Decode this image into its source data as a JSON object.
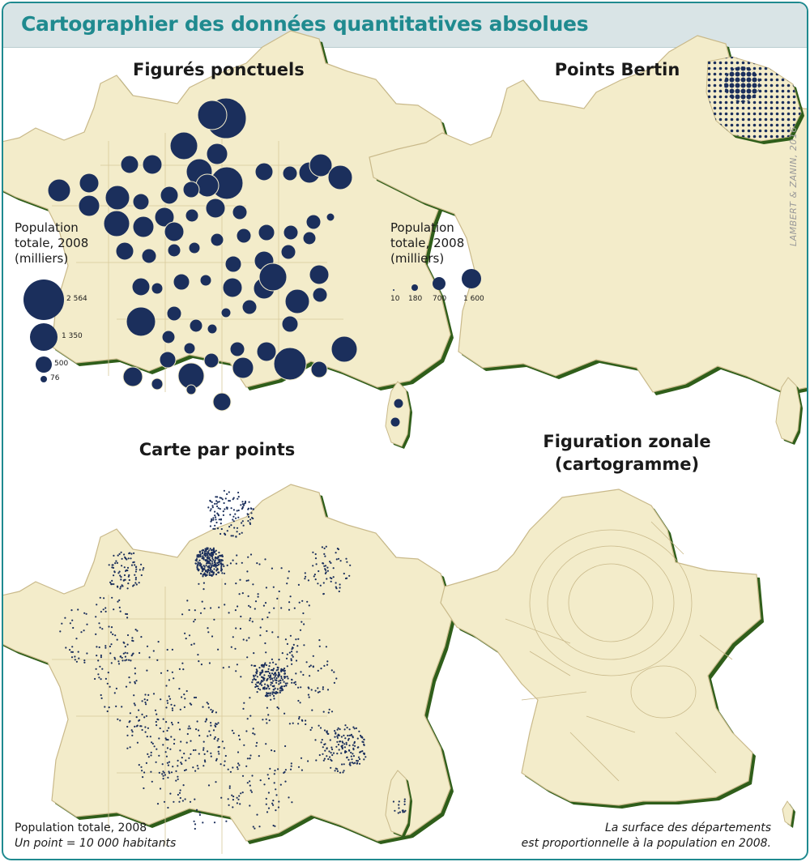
{
  "header": {
    "title": "Cartographier des données quantitatives absolues"
  },
  "credit": "LAMBERT & ZANIN, 2016",
  "panels": {
    "proportional_symbols": {
      "title": "Figurés ponctuels",
      "legend": {
        "title": "Population totale, 2008 (milliers)",
        "values": [
          "2 564",
          "1 350",
          "500",
          "76"
        ]
      }
    },
    "bertin": {
      "title": "Points Bertin",
      "legend": {
        "title": "Population totale, 2008 (milliers)",
        "values": [
          "10",
          "180",
          "700",
          "1 600"
        ]
      }
    },
    "dot_map": {
      "title": "Carte par points",
      "note_line1": "Population totale, 2008",
      "note_line2": "Un point = 10 000 habitants"
    },
    "cartogram": {
      "title_line1": "Figuration zonale",
      "title_line2": "(cartogramme)",
      "note_line1": "La surface des départements",
      "note_line2": "est proportionnelle à la population en 2008."
    }
  },
  "colors": {
    "accent": "#1f8a8f",
    "land": "#f3ecca",
    "border": "#c9b98a",
    "shadow": "#2f5e1a",
    "symbol": "#1b2f5c"
  }
}
